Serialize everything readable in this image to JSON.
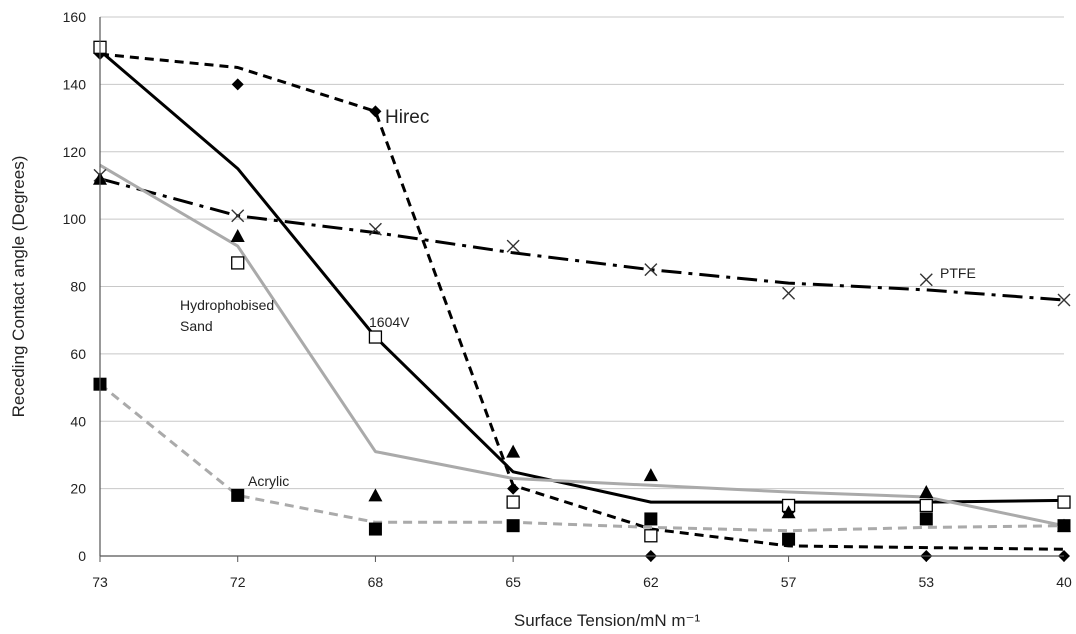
{
  "chart_data": {
    "type": "line",
    "title": "",
    "xlabel": "Surface Tension/mN m⁻¹",
    "ylabel": "Receding Contact angle (Degrees)",
    "categories": [
      "73",
      "72",
      "68",
      "65",
      "62",
      "57",
      "53",
      "40"
    ],
    "ylim": [
      0,
      160
    ],
    "yticks": [
      0,
      20,
      40,
      60,
      80,
      100,
      120,
      140,
      160
    ],
    "grid": true,
    "series": [
      {
        "name": "Hirec",
        "color": "#000000",
        "line_style": "dashed",
        "marker": "diamond",
        "points": [
          149,
          140,
          132,
          20,
          0,
          13,
          0,
          0
        ],
        "trend": [
          149,
          145,
          132,
          21,
          8,
          3,
          2.5,
          2
        ]
      },
      {
        "name": "1604V",
        "color": "#000000",
        "line_style": "solid",
        "marker": "open-square",
        "points": [
          151,
          87,
          65,
          16,
          6,
          15,
          15,
          16
        ],
        "trend": [
          150,
          115,
          65,
          25,
          16,
          16,
          16,
          16.5
        ]
      },
      {
        "name": "PTFE",
        "color": "#000000",
        "line_style": "dash-dot",
        "marker": "cross",
        "points": [
          113,
          101,
          97,
          92,
          85,
          78,
          82,
          76
        ],
        "trend": [
          112,
          101,
          96,
          90,
          85,
          81,
          79,
          76
        ]
      },
      {
        "name": "Hydrophobised Sand",
        "color": "#aaaaaa",
        "line_style": "solid",
        "marker": "filled-triangle",
        "points": [
          112,
          95,
          18,
          31,
          24,
          13,
          19,
          9
        ],
        "trend": [
          116,
          92,
          31,
          23,
          21,
          19,
          17.5,
          9
        ]
      },
      {
        "name": "Acrylic",
        "color": "#aaaaaa",
        "line_style": "dashed",
        "marker": "filled-square",
        "points": [
          51,
          18,
          8,
          9,
          11,
          5,
          11,
          9
        ],
        "trend": [
          51,
          18,
          10,
          10,
          8.5,
          7.5,
          8.5,
          9
        ]
      }
    ],
    "annotations": [
      {
        "text": "Hirec",
        "series": "Hirec"
      },
      {
        "text": "PTFE",
        "series": "PTFE"
      },
      {
        "text": "Hydrophobised",
        "series": "Hydrophobised Sand"
      },
      {
        "text": "Sand",
        "series": "Hydrophobised Sand"
      },
      {
        "text": "1604V",
        "series": "1604V"
      },
      {
        "text": "Acrylic",
        "series": "Acrylic"
      }
    ]
  }
}
